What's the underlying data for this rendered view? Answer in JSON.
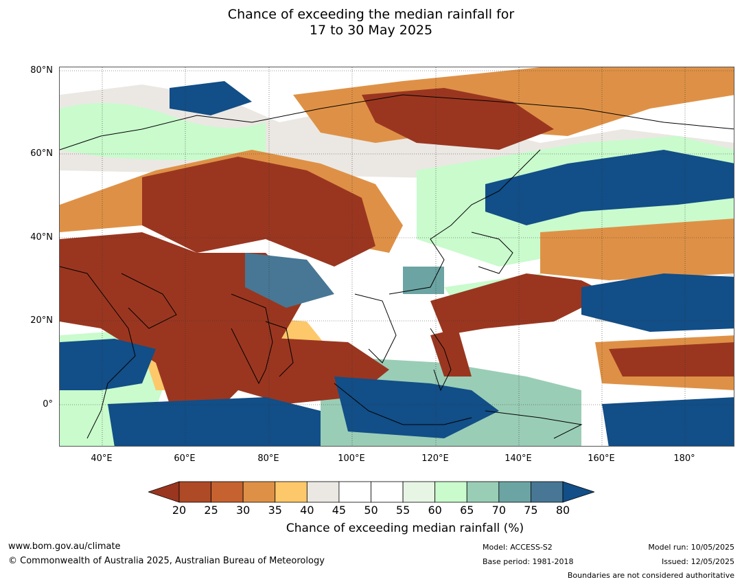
{
  "title": {
    "line1": "Chance of exceeding the median rainfall for",
    "line2": "17 to 30 May 2025"
  },
  "map": {
    "lat_ticks": [
      "80°N",
      "60°N",
      "40°N",
      "20°N",
      "0°"
    ],
    "lon_ticks": [
      "40°E",
      "60°E",
      "80°E",
      "100°E",
      "120°E",
      "140°E",
      "160°E",
      "180°"
    ]
  },
  "colorbar": {
    "title": "Chance of exceeding median rainfall (%)",
    "ticks": [
      "20",
      "25",
      "30",
      "35",
      "40",
      "45",
      "50",
      "55",
      "60",
      "65",
      "70",
      "75",
      "80"
    ],
    "colors": [
      "#9a3620",
      "#ae4a26",
      "#c5622f",
      "#de9146",
      "#fdc86a",
      "#ebe8e3",
      "#ffffff",
      "#ffffff",
      "#e7f5e5",
      "#c9fbcd",
      "#9acdb6",
      "#6ba4a3",
      "#477795",
      "#124e87"
    ]
  },
  "footer": {
    "website": "www.bom.gov.au/climate",
    "copyright": "© Commonwealth of Australia 2025, Australian Bureau of Meteorology",
    "model": "Model: ACCESS-S2",
    "base_period": "Base period: 1981-2018",
    "model_run": "Model run: 10/05/2025",
    "issued": "Issued: 12/05/2025",
    "disclaimer": "Boundaries are not considered authoritative"
  }
}
